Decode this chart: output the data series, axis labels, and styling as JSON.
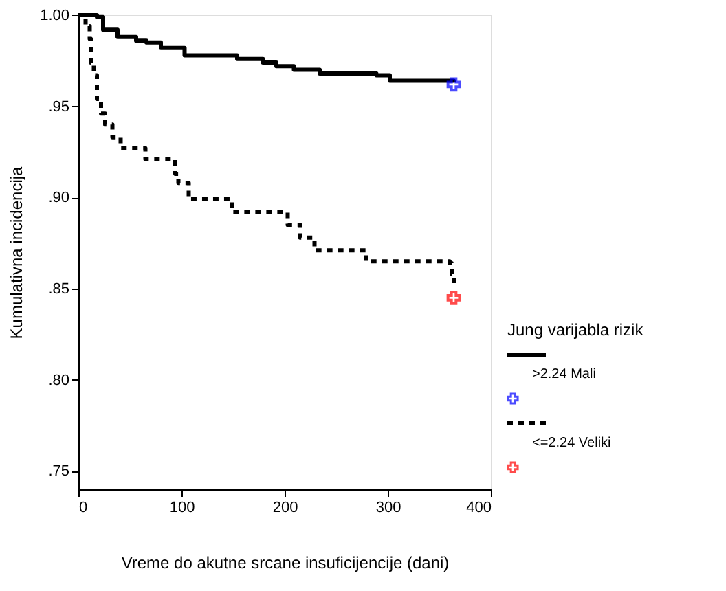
{
  "chart_data": {
    "type": "step",
    "xlabel": "Vreme do akutne srcane insuficijencije (dani)",
    "ylabel": "Kumulativna incidencija",
    "legend_title": "Jung varijabla rizik",
    "legend": "right",
    "grid": false,
    "xlim": [
      0,
      400
    ],
    "xticks": [
      0,
      100,
      200,
      300,
      400
    ],
    "ylim": [
      0.74,
      1.0
    ],
    "yticks": [
      {
        "value": 1.0,
        "label": "1.00"
      },
      {
        "value": 0.95,
        "label": ".95"
      },
      {
        "value": 0.9,
        "label": ".90"
      },
      {
        "value": 0.85,
        "label": ".85"
      },
      {
        "value": 0.8,
        "label": ".80"
      },
      {
        "value": 0.75,
        "label": ".75"
      }
    ],
    "series": [
      {
        "name": ">2.24 Mali",
        "color": "#000000",
        "line_style": "solid",
        "marker": "none",
        "x": [
          0,
          18,
          24,
          38,
          56,
          66,
          80,
          103,
          154,
          179,
          192,
          209,
          234,
          289,
          302,
          364
        ],
        "values": [
          1.0,
          0.999,
          0.992,
          0.988,
          0.986,
          0.985,
          0.982,
          0.978,
          0.976,
          0.974,
          0.972,
          0.97,
          0.968,
          0.967,
          0.964,
          0.963
        ]
      },
      {
        "type": "scatter",
        "color": "#0000ff",
        "marker": "cross",
        "x": [
          364
        ],
        "values": [
          0.962
        ]
      },
      {
        "name": "<=2.24  Veliki",
        "color": "#000000",
        "line_style": "dotted",
        "marker": "none",
        "x": [
          0,
          7,
          11,
          12,
          15,
          18,
          22,
          26,
          33,
          41,
          65,
          94,
          97,
          107,
          149,
          203,
          215,
          229,
          279,
          360,
          362,
          364
        ],
        "values": [
          1.0,
          0.994,
          0.987,
          0.974,
          0.967,
          0.954,
          0.946,
          0.94,
          0.933,
          0.927,
          0.921,
          0.913,
          0.908,
          0.899,
          0.892,
          0.885,
          0.878,
          0.871,
          0.865,
          0.864,
          0.858,
          0.851
        ]
      },
      {
        "type": "scatter",
        "color": "#ff0000",
        "marker": "cross",
        "x": [
          364
        ],
        "values": [
          0.845
        ]
      }
    ]
  }
}
